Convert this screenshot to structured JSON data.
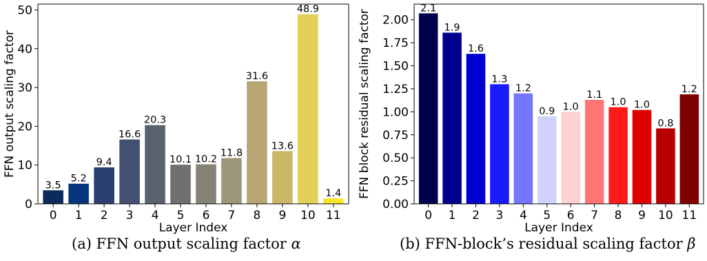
{
  "chart_data": [
    {
      "type": "bar",
      "categories": [
        "0",
        "1",
        "2",
        "3",
        "4",
        "5",
        "6",
        "7",
        "8",
        "9",
        "10",
        "11"
      ],
      "values": [
        3.5,
        5.2,
        9.4,
        16.6,
        20.3,
        10.1,
        10.2,
        11.8,
        31.6,
        13.6,
        48.9,
        1.4
      ],
      "data_labels": [
        "3.5",
        "5.2",
        "9.4",
        "16.6",
        "20.3",
        "10.1",
        "10.2",
        "11.8",
        "31.6",
        "13.6",
        "48.9",
        "1.4"
      ],
      "colors": [
        "#0d2b5a",
        "#04357d",
        "#2a3e6f",
        "#434f73",
        "#5b626f",
        "#707070",
        "#868374",
        "#9d9679",
        "#b5a673",
        "#cab867",
        "#e2d157",
        "#fbe625"
      ],
      "xlabel": "Layer Index",
      "ylabel": "FFN output scaling factor",
      "ylim": [
        0,
        51.5
      ],
      "yticks": [
        0,
        10,
        20,
        30,
        40,
        50
      ],
      "ytick_labels": [
        "0",
        "10",
        "20",
        "30",
        "40",
        "50"
      ],
      "grid": false,
      "caption": {
        "prefix": "(a) FFN output scaling factor ",
        "symbol": "α"
      }
    },
    {
      "type": "bar",
      "categories": [
        "0",
        "1",
        "2",
        "3",
        "4",
        "5",
        "6",
        "7",
        "8",
        "9",
        "10",
        "11"
      ],
      "values": [
        2.07,
        1.86,
        1.63,
        1.3,
        1.2,
        0.95,
        1.0,
        1.13,
        1.05,
        1.02,
        0.82,
        1.19
      ],
      "data_labels": [
        "2.1",
        "1.9",
        "1.6",
        "1.3",
        "1.2",
        "0.9",
        "1.0",
        "1.1",
        "1.0",
        "1.0",
        "0.8",
        "1.2"
      ],
      "colors": [
        "#00004c",
        "#00008f",
        "#0000d3",
        "#1a1aff",
        "#7575ff",
        "#d1d1ff",
        "#ffd1d1",
        "#ff7575",
        "#ff1a1a",
        "#df0000",
        "#b60000",
        "#7f0000"
      ],
      "xlabel": "Layer Index",
      "ylabel": "FFN block residual scaling factor",
      "ylim": [
        0,
        2.17
      ],
      "yticks": [
        0,
        0.25,
        0.5,
        0.75,
        1.0,
        1.25,
        1.5,
        1.75,
        2.0
      ],
      "ytick_labels": [
        "0.00",
        "0.25",
        "0.50",
        "0.75",
        "1.00",
        "1.25",
        "1.50",
        "1.75",
        "2.00"
      ],
      "grid": false,
      "caption": {
        "prefix": "(b) FFN-block’s residual scaling factor ",
        "symbol": "β"
      }
    }
  ]
}
